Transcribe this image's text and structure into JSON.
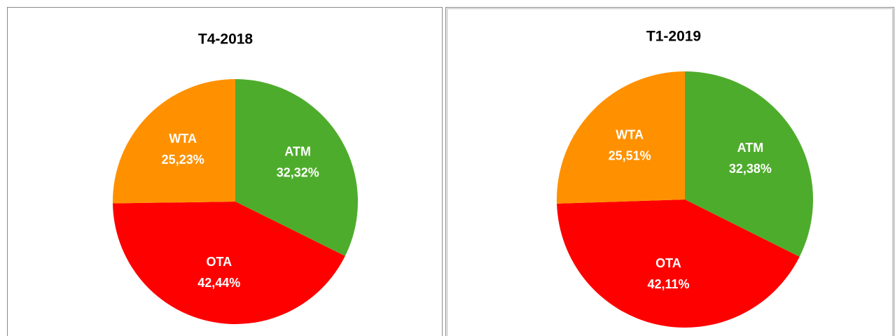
{
  "chart_data": [
    {
      "type": "pie",
      "title": "T4-2018",
      "categories": [
        "ATM",
        "OTA",
        "WTA"
      ],
      "values": [
        32.32,
        42.44,
        25.23
      ],
      "value_labels": [
        "32,32%",
        "42,44%",
        "25,23%"
      ],
      "colors": [
        "#4eac2c",
        "#ff0000",
        "#ff9100"
      ]
    },
    {
      "type": "pie",
      "title": "T1-2019",
      "categories": [
        "ATM",
        "OTA",
        "WTA"
      ],
      "values": [
        32.38,
        42.11,
        25.51
      ],
      "value_labels": [
        "32,38%",
        "42,11%",
        "25,51%"
      ],
      "colors": [
        "#4eac2c",
        "#ff0000",
        "#ff9100"
      ]
    }
  ]
}
